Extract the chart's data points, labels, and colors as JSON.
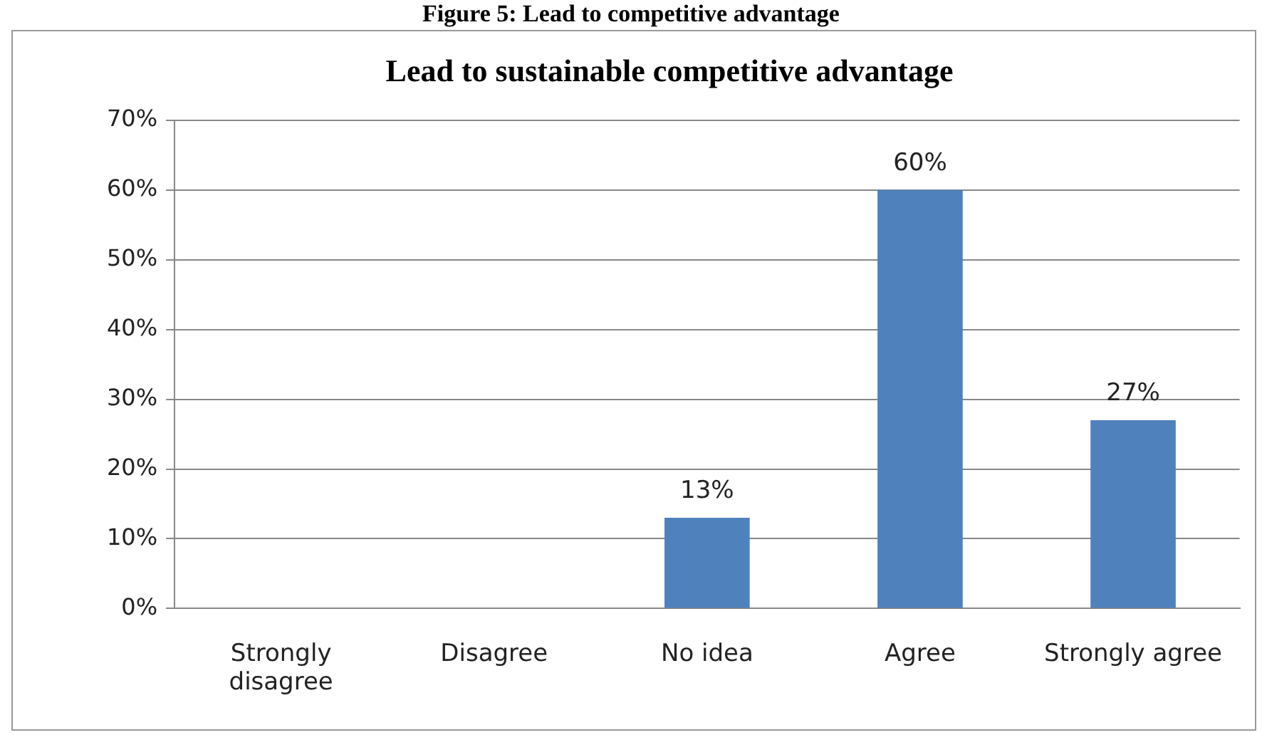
{
  "chart_data": {
    "type": "bar",
    "title": "Lead to sustainable competitive advantage",
    "annotations": [
      "Figure 5: Lead to competitive advantage"
    ],
    "categories": [
      "Strongly disagree",
      "Disagree",
      "No idea",
      "Agree",
      "Strongly agree"
    ],
    "values": [
      0,
      0,
      13,
      60,
      27
    ],
    "value_labels": [
      null,
      null,
      "13%",
      "60%",
      "27%"
    ],
    "color": "#4f81bd",
    "ylim": [
      0,
      70
    ],
    "yticks": [
      {
        "value": 0,
        "label": "0%"
      },
      {
        "value": 10,
        "label": "10%"
      },
      {
        "value": 20,
        "label": "20%"
      },
      {
        "value": 30,
        "label": "30%"
      },
      {
        "value": 40,
        "label": "40%"
      },
      {
        "value": 50,
        "label": "50%"
      },
      {
        "value": 60,
        "label": "60%"
      },
      {
        "value": 70,
        "label": "70%"
      }
    ],
    "grid": "y",
    "legend": false
  }
}
